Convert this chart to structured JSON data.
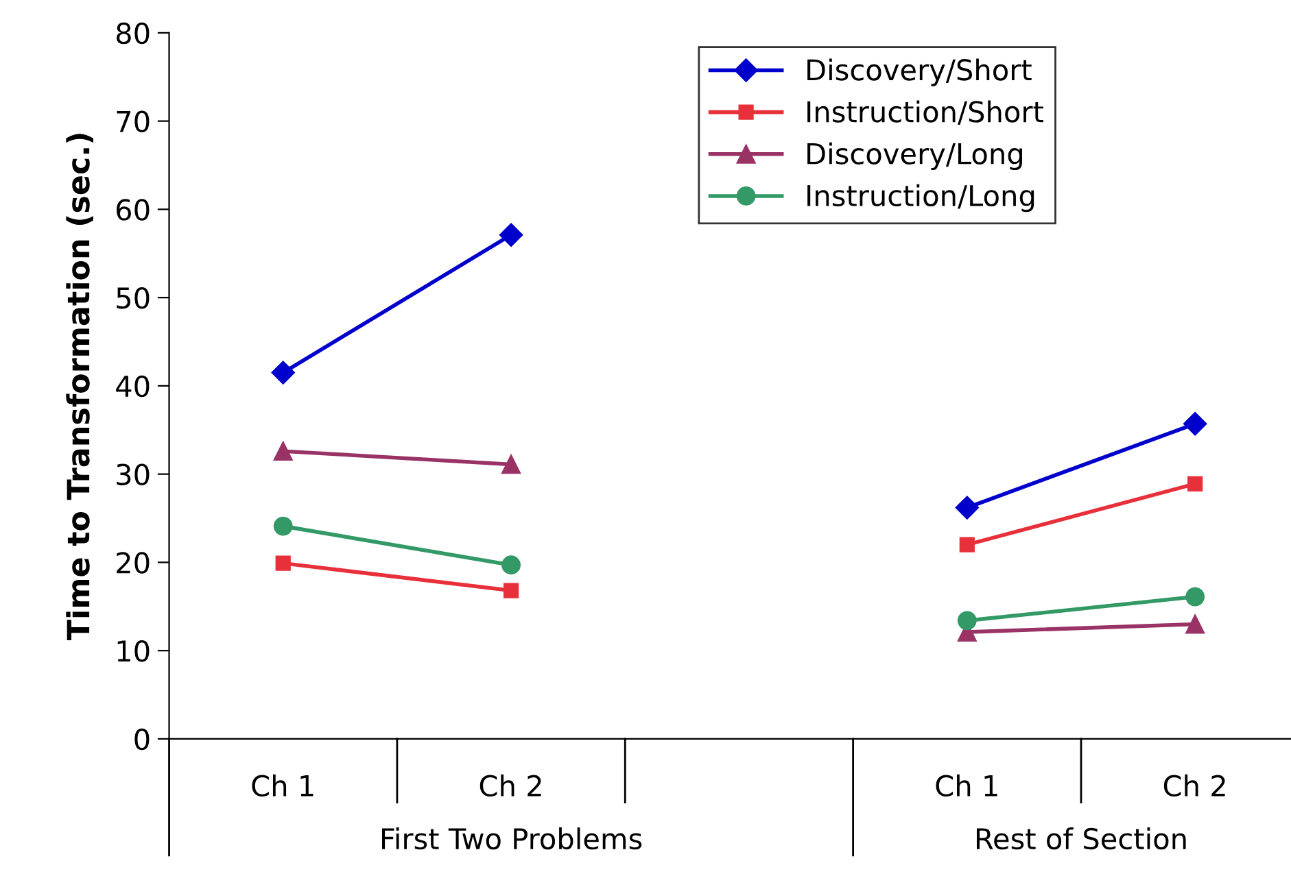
{
  "chart_data": {
    "type": "line",
    "ylabel": "Time to Transformation (sec.)",
    "categories": [
      "Ch 1",
      "Ch 2",
      null,
      "Ch 1",
      "Ch 2"
    ],
    "series": [
      {
        "name": "Discovery/Short",
        "color": "#0000cc",
        "marker": "diamond",
        "values": [
          41.5,
          57.1,
          null,
          26.2,
          35.7
        ]
      },
      {
        "name": "Instruction/Short",
        "color": "#e8303a",
        "marker": "square",
        "values": [
          19.9,
          16.8,
          null,
          22.0,
          28.9
        ]
      },
      {
        "name": "Discovery/Long",
        "color": "#993366",
        "marker": "triangle",
        "values": [
          32.6,
          31.1,
          null,
          12.1,
          13.0
        ]
      },
      {
        "name": "Instruction/Long",
        "color": "#339966",
        "marker": "circle",
        "values": [
          24.1,
          19.7,
          null,
          13.4,
          16.1
        ]
      }
    ],
    "annotations": [
      "First Two Problems",
      "Rest of Section"
    ],
    "ylim": [
      0,
      80
    ],
    "yticks": [
      0,
      10,
      20,
      30,
      40,
      50,
      60,
      70,
      80
    ],
    "grid": false,
    "legend": "top right",
    "line_style": "solid"
  }
}
